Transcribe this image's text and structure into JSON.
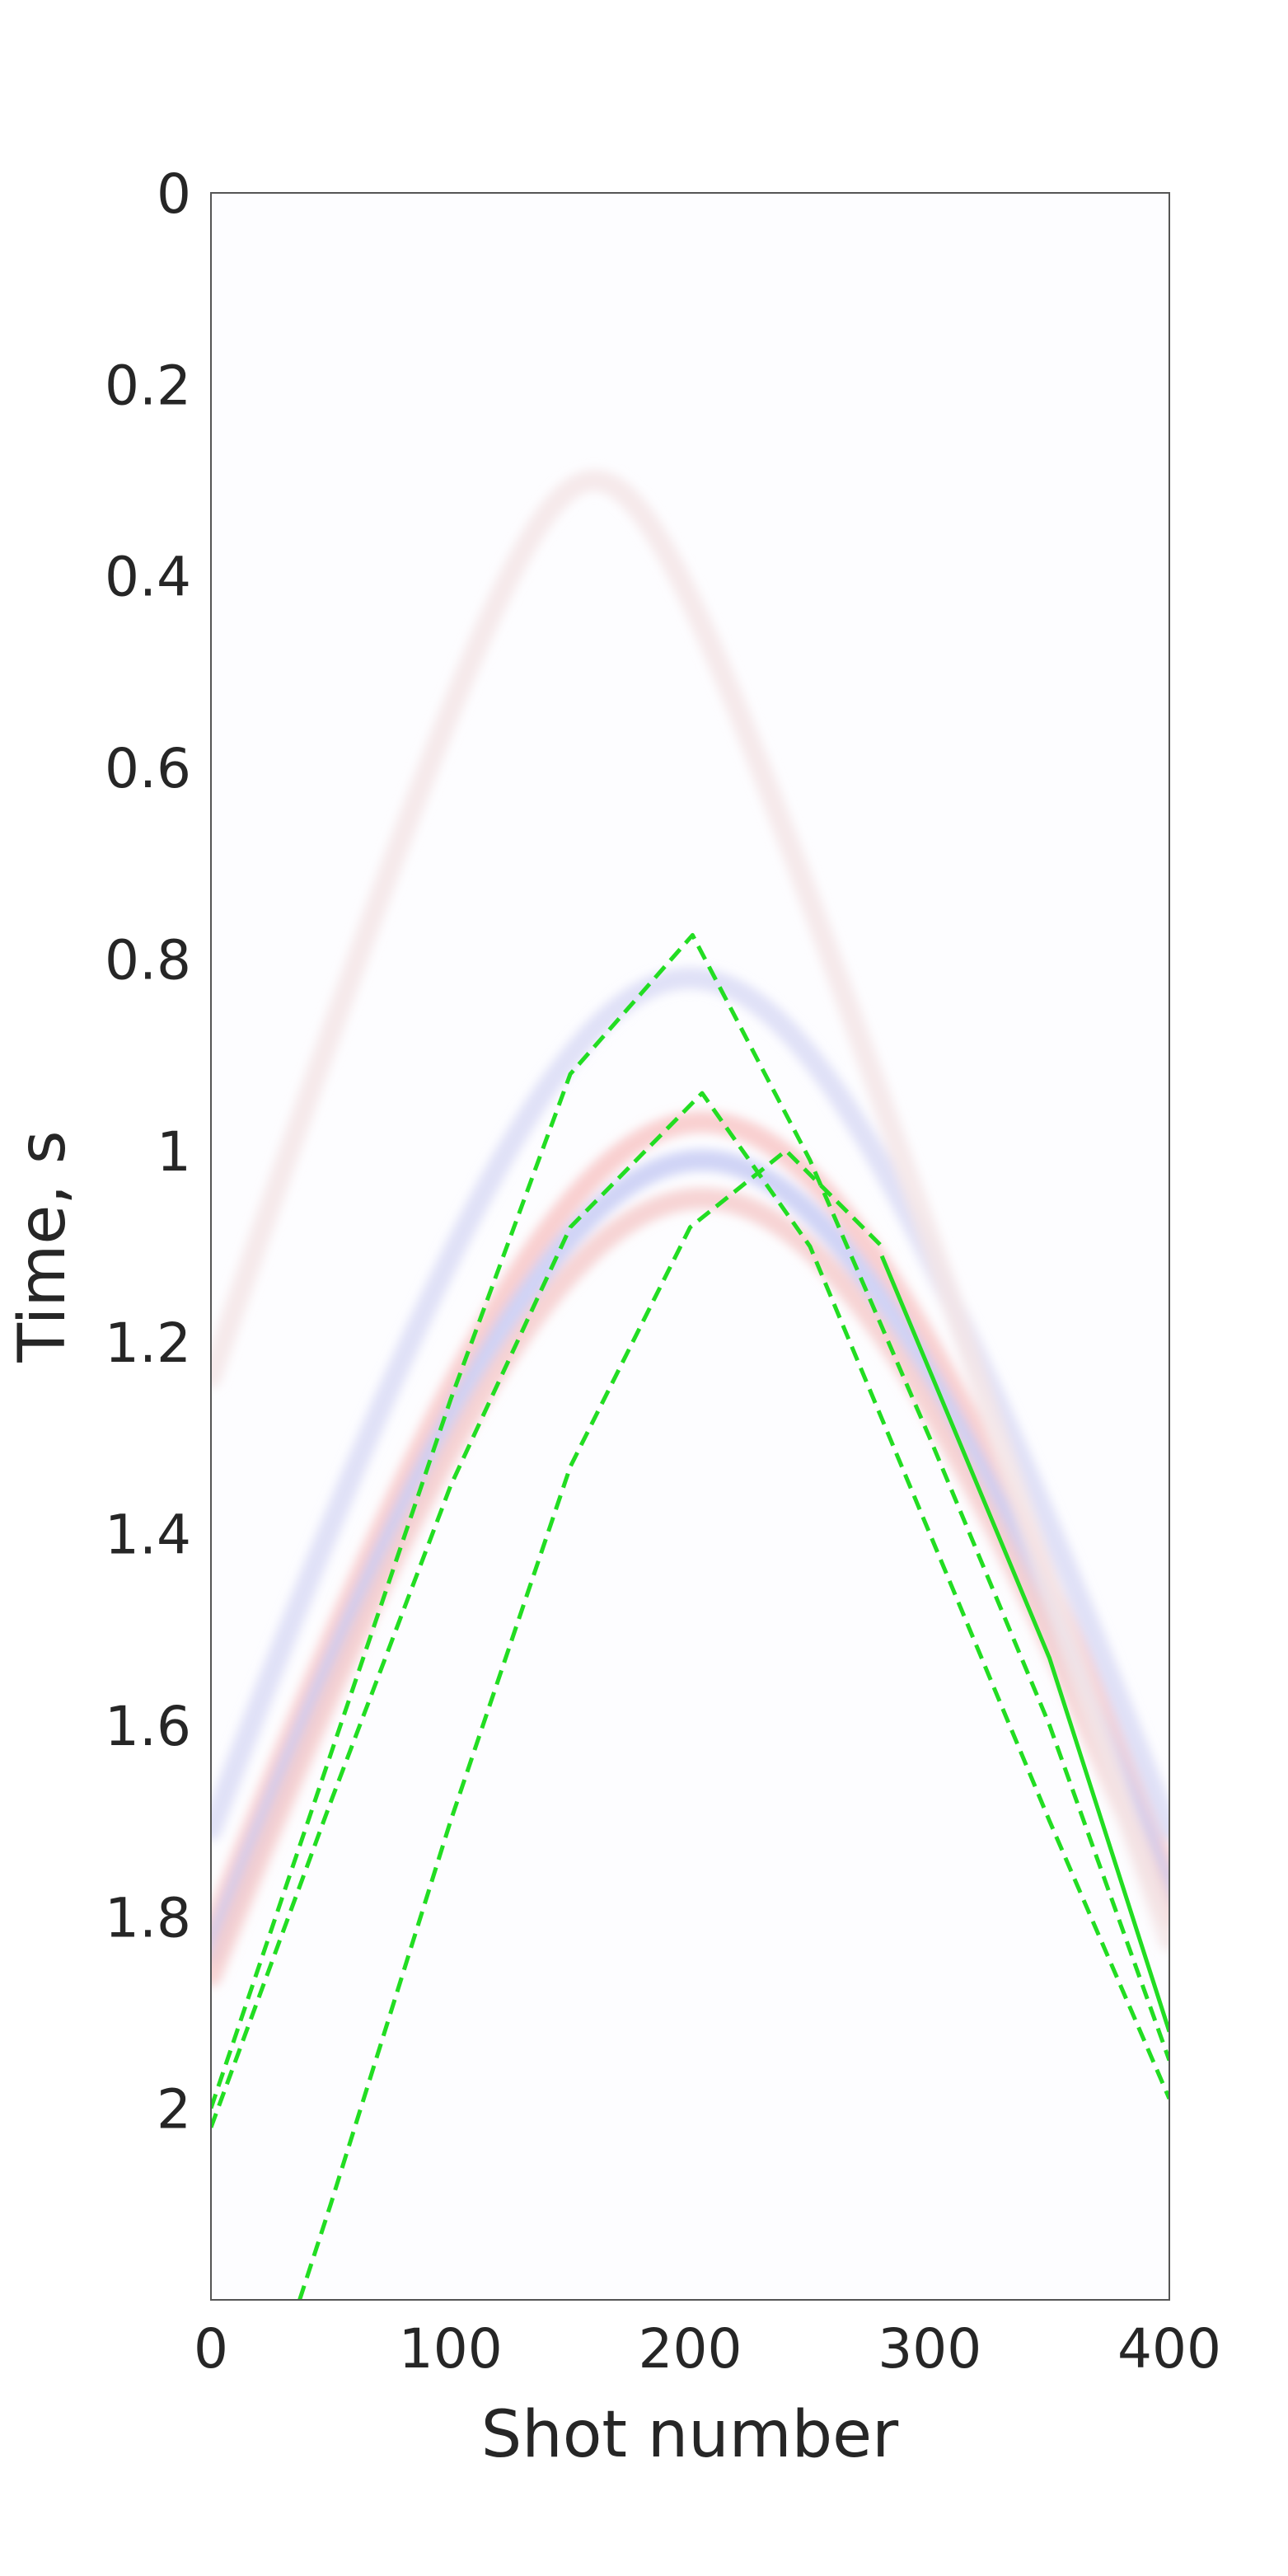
{
  "chart_data": {
    "type": "seismic-section",
    "title": "",
    "xlabel": "Shot number",
    "ylabel": "Time, s",
    "xlim": [
      0,
      400
    ],
    "ylim": [
      0,
      2.2
    ],
    "y_inverted": true,
    "x_ticks": [
      "0",
      "100",
      "200",
      "300",
      "400"
    ],
    "y_ticks": [
      "0",
      "0.2",
      "0.4",
      "0.6",
      "0.8",
      "1",
      "1.2",
      "1.4",
      "1.6",
      "1.8",
      "2"
    ],
    "grid": false,
    "colormap": "blue-white-red",
    "curve_color": "#22dd22",
    "curves": [
      {
        "style": "dashed",
        "apex_x": 201,
        "apex_t": 0.775,
        "points": [
          [
            0,
            2.0
          ],
          [
            50,
            1.63
          ],
          [
            100,
            1.26
          ],
          [
            150,
            0.92
          ],
          [
            201,
            0.775
          ],
          [
            250,
            1.01
          ],
          [
            300,
            1.3
          ],
          [
            350,
            1.6
          ],
          [
            400,
            1.95
          ]
        ]
      },
      {
        "style": "dashed",
        "apex_x": 205,
        "apex_t": 0.94,
        "points": [
          [
            0,
            2.02
          ],
          [
            50,
            1.68
          ],
          [
            100,
            1.35
          ],
          [
            150,
            1.08
          ],
          [
            205,
            0.94
          ],
          [
            250,
            1.1
          ],
          [
            300,
            1.4
          ],
          [
            350,
            1.7
          ],
          [
            400,
            1.99
          ]
        ]
      },
      {
        "style": "dashed",
        "apex_x": 240,
        "apex_t": 1.0,
        "points": [
          [
            37,
            2.2
          ],
          [
            50,
            2.1
          ],
          [
            100,
            1.7
          ],
          [
            150,
            1.33
          ],
          [
            200,
            1.08
          ],
          [
            240,
            1.0
          ],
          [
            280,
            1.1
          ]
        ]
      },
      {
        "style": "solid",
        "points": [
          [
            280,
            1.11
          ],
          [
            300,
            1.23
          ],
          [
            350,
            1.53
          ],
          [
            400,
            1.92
          ]
        ]
      }
    ],
    "events": [
      {
        "polarity": "positive",
        "apex_x": 205,
        "apex_t": 0.97,
        "color": "#f8c8c8"
      },
      {
        "polarity": "negative",
        "apex_x": 205,
        "apex_t": 1.01,
        "color": "#c8ccf4"
      },
      {
        "polarity": "positive",
        "apex_x": 205,
        "apex_t": 1.05,
        "color": "#f6cccc"
      },
      {
        "polarity": "negative",
        "apex_x": 200,
        "apex_t": 0.82,
        "color": "#dadcf6"
      },
      {
        "polarity": "positive",
        "apex_x": 160,
        "apex_t": 0.3,
        "color": "#f4e6e8"
      }
    ]
  }
}
